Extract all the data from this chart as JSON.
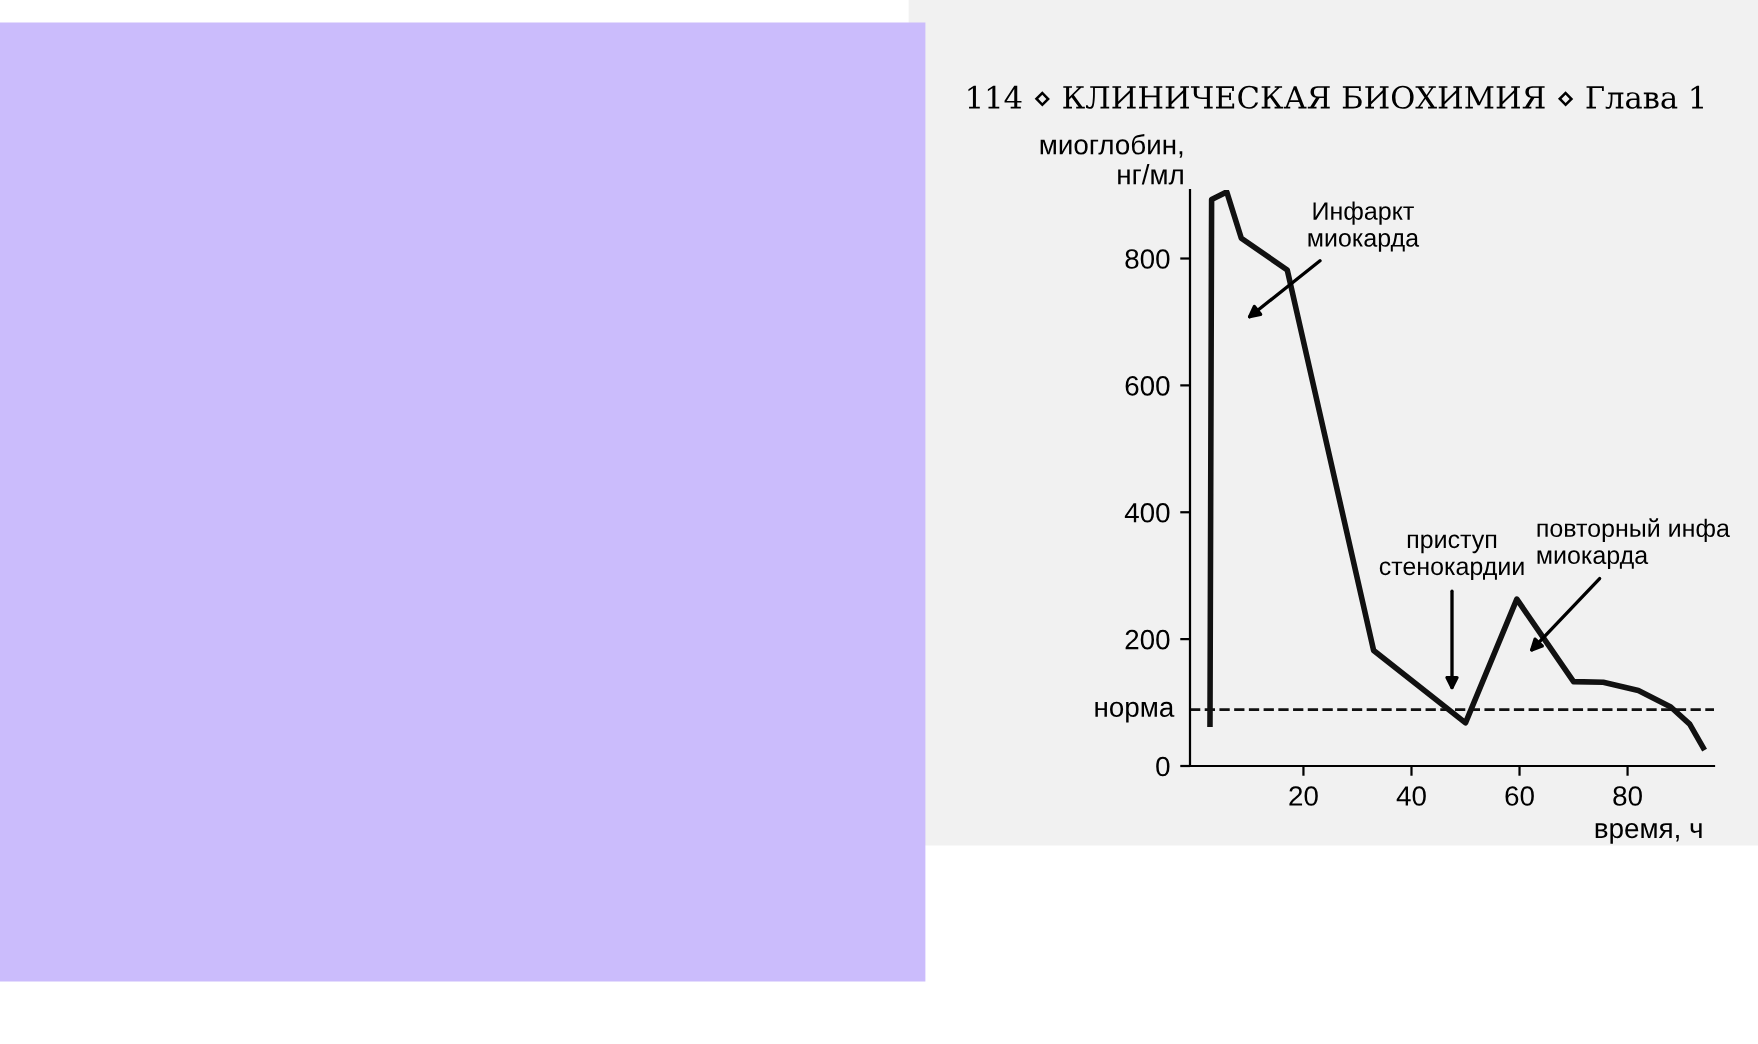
{
  "chart_data": {
    "type": "line",
    "title": "114 ⋄ КЛИНИЧЕСКАЯ БИОХИМИЯ ⋄ Глава 1",
    "xlabel": "время, ч",
    "ylabel": "миоглобин,\nнг/мл",
    "series": [
      {
        "color": "#111111",
        "x": [
          2.7,
          3,
          5.8,
          8.5,
          17,
          33,
          50,
          59.5,
          70,
          75.5,
          82,
          88,
          91.5,
          94
        ],
        "values": [
          66,
          893,
          905,
          832,
          782,
          182,
          68,
          263,
          133,
          132,
          119,
          93,
          66,
          29
        ]
      }
    ],
    "xlim": [
      -1,
      96
    ],
    "ylim": [
      0,
      908
    ],
    "xticks": [
      20,
      40,
      60,
      80
    ],
    "yticks": [
      0,
      200,
      400,
      600,
      800
    ],
    "ref_lines": [
      {
        "axis": "y",
        "value": 89,
        "label": "норма",
        "line_style": "dashed",
        "color": "#111111"
      }
    ],
    "annotations": [
      "Инфаркт\nмиокарда",
      "приступ\nстенокардии",
      "повторный инфа\nмиокарда"
    ],
    "grid": false,
    "legend": false,
    "marker": "none",
    "line_style": "solid"
  }
}
